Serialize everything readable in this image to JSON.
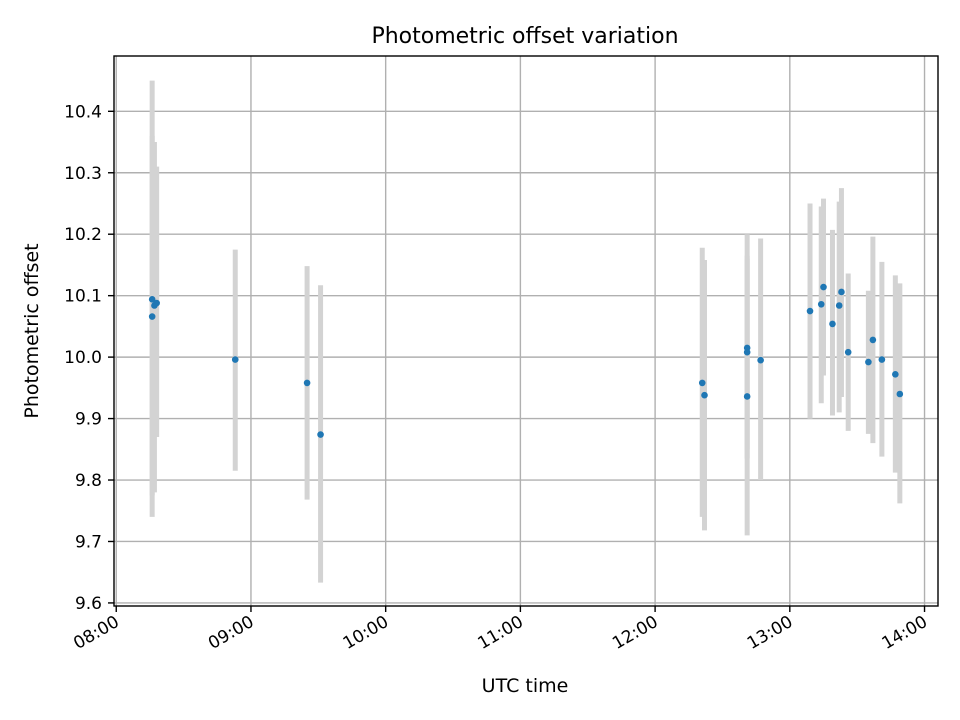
{
  "chart_data": {
    "type": "scatter",
    "title": "Photometric offset variation",
    "xlabel": "UTC time",
    "ylabel": "Photometric offset",
    "x_ticks": [
      "08:00",
      "09:00",
      "10:00",
      "11:00",
      "12:00",
      "13:00",
      "14:00"
    ],
    "y_ticks": [
      "9.6",
      "9.7",
      "9.8",
      "9.9",
      "10.0",
      "10.1",
      "10.2",
      "10.3",
      "10.4"
    ],
    "xlim": [
      "07:59",
      "14:06"
    ],
    "ylim": [
      9.595,
      10.49
    ],
    "grid": true,
    "marker_color": "#1f77b4",
    "errorbar_color": "#d3d3d3",
    "points": [
      {
        "x": "08:16",
        "y": 10.094,
        "ylo": 9.74,
        "yhi": 10.45
      },
      {
        "x": "08:16",
        "y": 10.066,
        "ylo": 9.775,
        "yhi": 10.36
      },
      {
        "x": "08:17",
        "y": 10.084,
        "ylo": 9.78,
        "yhi": 10.35
      },
      {
        "x": "08:18",
        "y": 10.088,
        "ylo": 9.87,
        "yhi": 10.31
      },
      {
        "x": "08:53",
        "y": 9.996,
        "ylo": 9.815,
        "yhi": 10.175
      },
      {
        "x": "09:25",
        "y": 9.958,
        "ylo": 9.768,
        "yhi": 10.148
      },
      {
        "x": "09:31",
        "y": 9.874,
        "ylo": 9.633,
        "yhi": 10.117
      },
      {
        "x": "12:21",
        "y": 9.958,
        "ylo": 9.74,
        "yhi": 10.178
      },
      {
        "x": "12:22",
        "y": 9.938,
        "ylo": 9.718,
        "yhi": 10.158
      },
      {
        "x": "12:41",
        "y": 10.015,
        "ylo": 9.835,
        "yhi": 10.2
      },
      {
        "x": "12:41",
        "y": 10.008,
        "ylo": 9.85,
        "yhi": 10.165
      },
      {
        "x": "12:41",
        "y": 9.936,
        "ylo": 9.71,
        "yhi": 10.16
      },
      {
        "x": "12:47",
        "y": 9.995,
        "ylo": 9.8,
        "yhi": 10.193
      },
      {
        "x": "13:09",
        "y": 10.075,
        "ylo": 9.9,
        "yhi": 10.25
      },
      {
        "x": "13:14",
        "y": 10.086,
        "ylo": 9.925,
        "yhi": 10.245
      },
      {
        "x": "13:15",
        "y": 10.114,
        "ylo": 9.97,
        "yhi": 10.258
      },
      {
        "x": "13:19",
        "y": 10.054,
        "ylo": 9.905,
        "yhi": 10.207
      },
      {
        "x": "13:22",
        "y": 10.084,
        "ylo": 9.91,
        "yhi": 10.253
      },
      {
        "x": "13:23",
        "y": 10.106,
        "ylo": 9.935,
        "yhi": 10.275
      },
      {
        "x": "13:26",
        "y": 10.008,
        "ylo": 9.88,
        "yhi": 10.136
      },
      {
        "x": "13:35",
        "y": 9.992,
        "ylo": 9.875,
        "yhi": 10.108
      },
      {
        "x": "13:37",
        "y": 10.028,
        "ylo": 9.86,
        "yhi": 10.196
      },
      {
        "x": "13:41",
        "y": 9.996,
        "ylo": 9.838,
        "yhi": 10.155
      },
      {
        "x": "13:47",
        "y": 9.972,
        "ylo": 9.812,
        "yhi": 10.133
      },
      {
        "x": "13:49",
        "y": 9.94,
        "ylo": 9.762,
        "yhi": 10.12
      }
    ]
  }
}
